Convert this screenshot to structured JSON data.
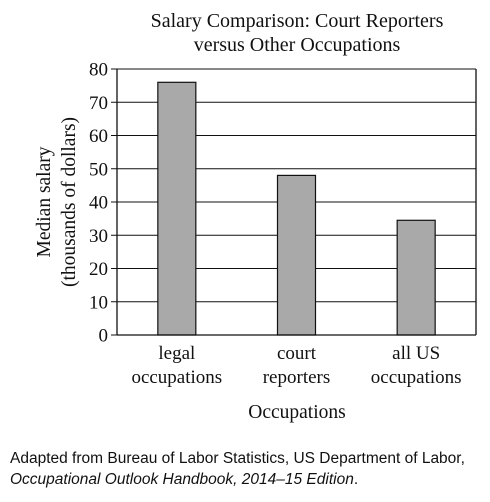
{
  "chart_data": {
    "type": "bar",
    "title": [
      "Salary Comparison: Court Reporters",
      "versus Other Occupations"
    ],
    "ylabel": [
      "Median salary",
      "(thousands of dollars)"
    ],
    "xlabel": "Occupations",
    "categories": [
      [
        "legal",
        "occupations"
      ],
      [
        "court",
        "reporters"
      ],
      [
        "all US",
        "occupations"
      ]
    ],
    "values": [
      76,
      48,
      34.5
    ],
    "ylim": [
      0,
      80
    ],
    "yticks": [
      0,
      10,
      20,
      30,
      40,
      50,
      60,
      70,
      80
    ],
    "grid": true,
    "legend": "none",
    "colors": {
      "bar": "#a9a9a9",
      "axis": "#111111"
    }
  },
  "source": {
    "line1": "Adapted from Bureau of Labor Statistics, US Department of Labor,",
    "line2_italic": "Occupational Outlook Handbook, 2014–15 Edition",
    "line2_end": "."
  }
}
